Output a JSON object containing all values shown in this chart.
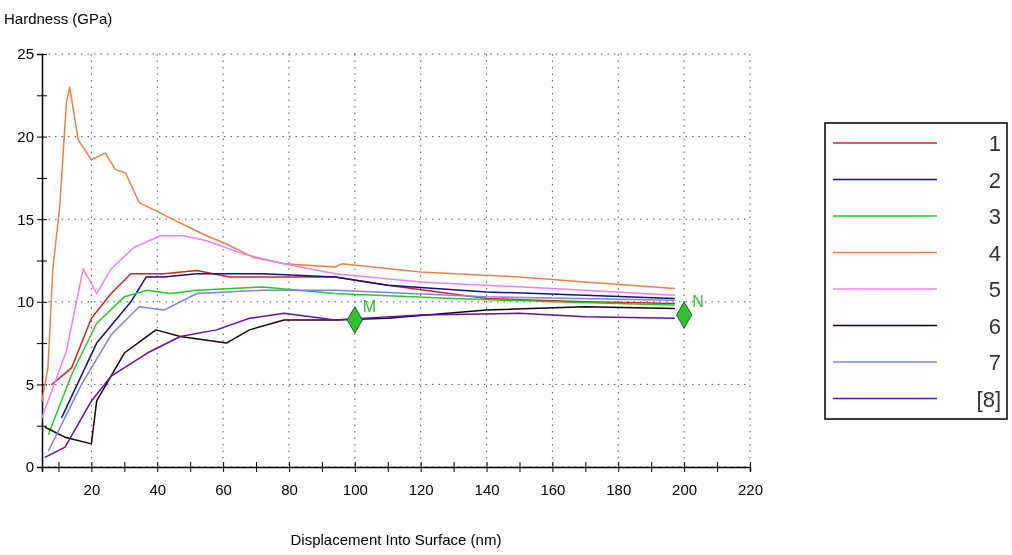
{
  "chart_data": {
    "type": "line",
    "ylabel": "Hardness (GPa)",
    "xlabel": "Displacement Into Surface (nm)",
    "xlim": [
      5,
      220
    ],
    "ylim": [
      0,
      25
    ],
    "xticks": [
      {
        "value": 10,
        "label": null
      },
      20,
      {
        "value": 30,
        "label": null
      },
      40,
      {
        "value": 50,
        "label": null
      },
      60,
      {
        "value": 70,
        "label": null
      },
      80,
      {
        "value": 90,
        "label": null
      },
      100,
      {
        "value": 110,
        "label": null
      },
      120,
      {
        "value": 130,
        "label": null
      },
      140,
      {
        "value": 150,
        "label": null
      },
      160,
      {
        "value": 170,
        "label": null
      },
      180,
      {
        "value": 190,
        "label": null
      },
      200,
      {
        "value": 210,
        "label": null
      },
      220
    ],
    "yticks": [
      0,
      {
        "value": 2.5,
        "label": null
      },
      5,
      {
        "value": 7.5,
        "label": null
      },
      10,
      {
        "value": 12.5,
        "label": null
      },
      15,
      {
        "value": 17.5,
        "label": null
      },
      20,
      {
        "value": 22.5,
        "label": null
      },
      25
    ],
    "grid": true,
    "legend": "right",
    "line_style": "solid",
    "marker": "none",
    "series": [
      {
        "name": "1",
        "color": "#e02020",
        "x": [
          8,
          14,
          20,
          26,
          32,
          42,
          52,
          62,
          72,
          94,
          110,
          140,
          170,
          197
        ],
        "values": [
          5,
          6,
          9,
          10.5,
          11.7,
          11.7,
          11.9,
          11.5,
          11.5,
          11.5,
          11,
          10.2,
          10,
          9.9
        ]
      },
      {
        "name": "2",
        "color": "#101090",
        "x": [
          11,
          21.6,
          32,
          36.6,
          42,
          52,
          72,
          94,
          110,
          140,
          170,
          197
        ],
        "values": [
          3,
          7.5,
          10,
          11.5,
          11.5,
          11.7,
          11.7,
          11.5,
          11,
          10.6,
          10.4,
          10.2
        ]
      },
      {
        "name": "3",
        "color": "#20d020",
        "x": [
          7,
          14,
          21.6,
          30,
          37,
          44,
          52,
          72,
          94,
          130,
          160,
          197
        ],
        "values": [
          2,
          5.6,
          8.7,
          10.3,
          10.7,
          10.5,
          10.7,
          10.9,
          10.5,
          10.2,
          10,
          9.8
        ]
      },
      {
        "name": "4",
        "color": "#f08040",
        "x": [
          5,
          6.8,
          8.3,
          10.4,
          12.4,
          13.4,
          16,
          20,
          24.2,
          27.3,
          30.4,
          34.5,
          39.6,
          44.6,
          49.8,
          55,
          61,
          69,
          78.5,
          94,
          96,
          120,
          150,
          170,
          191,
          197
        ],
        "values": [
          4,
          6,
          12,
          15.8,
          22,
          23,
          19.8,
          18.6,
          19,
          18,
          17.8,
          16,
          15.5,
          15,
          14.5,
          14,
          13.5,
          12.7,
          12.3,
          12.1,
          12.3,
          11.8,
          11.5,
          11.2,
          10.9,
          10.8
        ]
      },
      {
        "name": "5",
        "color": "#f080f0",
        "x": [
          5,
          12.4,
          17.5,
          21.6,
          26,
          33,
          41,
          48,
          55,
          66,
          78.5,
          94,
          120,
          160,
          197
        ],
        "values": [
          3,
          7,
          12,
          10.5,
          12,
          13.3,
          14,
          14,
          13.7,
          12.9,
          12.3,
          11.7,
          11.2,
          10.8,
          10.4
        ]
      },
      {
        "name": "6",
        "color": "#200000",
        "x": [
          6,
          12,
          20,
          21.6,
          30,
          39.6,
          47,
          61,
          68,
          78.5,
          94,
          110,
          140,
          170,
          197
        ],
        "values": [
          2.4,
          1.8,
          1.4,
          4,
          6.9,
          8.3,
          7.9,
          7.5,
          8.3,
          8.9,
          8.9,
          9,
          9.5,
          9.7,
          9.6
        ]
      },
      {
        "name": "7",
        "color": "#8080f0",
        "x": [
          7,
          17,
          26,
          34.5,
          42,
          52,
          72,
          94,
          140,
          197
        ],
        "values": [
          1,
          5,
          8,
          9.7,
          9.5,
          10.5,
          10.7,
          10.7,
          10.3,
          10.1
        ]
      },
      {
        "name": "[8]",
        "color": "#6010c0",
        "x": [
          6,
          12,
          20,
          26,
          37,
          47,
          58,
          68,
          78.5,
          94,
          120,
          150,
          170,
          197
        ],
        "values": [
          0.6,
          1.2,
          4,
          5.5,
          6.9,
          7.9,
          8.3,
          9,
          9.3,
          8.9,
          9.2,
          9.3,
          9.1,
          9
        ]
      },
      {
        "type": "scatter",
        "marker": "diamond",
        "color": "#30c030",
        "x": [
          100,
          200
        ],
        "values": [
          8.9,
          9.2
        ]
      }
    ],
    "annotations": [
      {
        "text": "M",
        "x": 100,
        "y": 8.9
      },
      {
        "text": "N",
        "x": 200,
        "y": 9.2
      }
    ]
  }
}
